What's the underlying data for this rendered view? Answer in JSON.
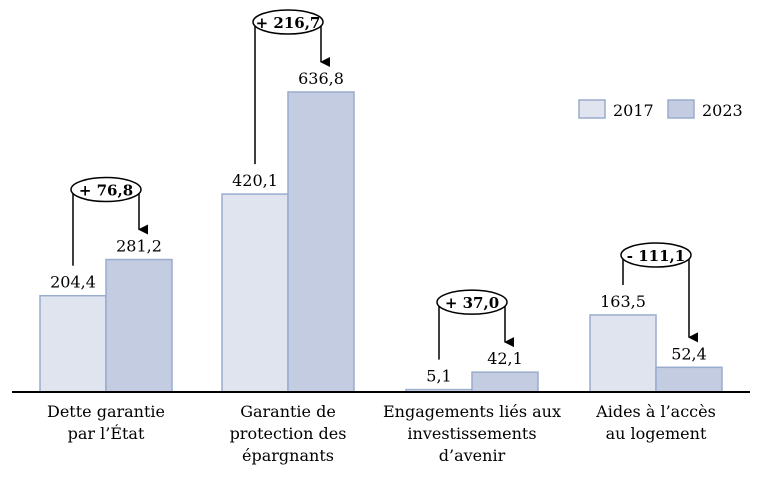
{
  "chart_data": {
    "type": "bar",
    "categories": [
      [
        "Dette garantie",
        "par l’État"
      ],
      [
        "Garantie de",
        "protection des",
        "épargnants"
      ],
      [
        "Engagements liés aux",
        "investissements",
        "d’avenir"
      ],
      [
        "Aides à l’accès",
        "au logement"
      ]
    ],
    "series": [
      {
        "name": "2017",
        "values": [
          204.4,
          420.1,
          5.1,
          163.5
        ],
        "labels": [
          "204,4",
          "420,1",
          "5,1",
          "163,5"
        ],
        "color": "#dfe4ef"
      },
      {
        "name": "2023",
        "values": [
          281.2,
          636.8,
          42.1,
          52.4
        ],
        "labels": [
          "281,2",
          "636,8",
          "42,1",
          "52,4"
        ],
        "color": "#c3cce0"
      }
    ],
    "differences": [
      "+ 76,8",
      "+ 216,7",
      "+ 37,0",
      "- 111,1"
    ],
    "border_color": "#9aaccd",
    "legend_position": "top-right",
    "grid": false,
    "ylim": [
      0,
      640
    ]
  }
}
